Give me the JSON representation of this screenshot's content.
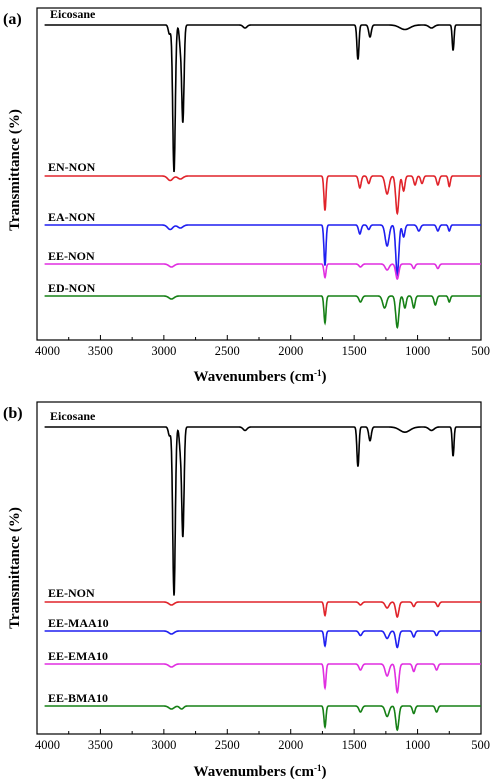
{
  "figure": {
    "y_axis_title": "Transmittance (%)",
    "x_axis_title_main": "Wavenumbers (cm",
    "x_axis_title_sup": "-1",
    "x_axis_title_end": ")"
  },
  "chart_data": [
    {
      "type": "line",
      "panel_label": "(a)",
      "xlabel": "Wavenumbers (cm-1)",
      "ylabel": "Transmittance (%)",
      "xlim": [
        4000,
        500
      ],
      "x_reversed": true,
      "xticks": [
        4000,
        3500,
        3000,
        2500,
        2000,
        1500,
        1000,
        500
      ],
      "y_tick_labels": false,
      "grid": false,
      "legend": "none (curve labels above each trace)",
      "series": [
        {
          "name": "Eicosane",
          "color": "#000000",
          "baseline": 0.0,
          "peaks": [
            {
              "x": 2956,
              "depth": 0.06,
              "width": 9
            },
            {
              "x": 2920,
              "depth": 0.98,
              "width": 10
            },
            {
              "x": 2870,
              "depth": 0.13,
              "width": 9
            },
            {
              "x": 2850,
              "depth": 0.64,
              "width": 9
            },
            {
              "x": 2360,
              "depth": 0.02,
              "width": 15
            },
            {
              "x": 1470,
              "depth": 0.23,
              "width": 8
            },
            {
              "x": 1375,
              "depth": 0.08,
              "width": 10
            },
            {
              "x": 1100,
              "depth": 0.03,
              "width": 40
            },
            {
              "x": 890,
              "depth": 0.02,
              "width": 20
            },
            {
              "x": 720,
              "depth": 0.17,
              "width": 7
            }
          ]
        },
        {
          "name": "EN-NON",
          "color": "#e0232a",
          "baseline": 0.0,
          "peaks": [
            {
              "x": 2950,
              "depth": 0.03,
              "width": 20
            },
            {
              "x": 2870,
              "depth": 0.02,
              "width": 20
            },
            {
              "x": 1730,
              "depth": 0.23,
              "width": 8
            },
            {
              "x": 1455,
              "depth": 0.08,
              "width": 10
            },
            {
              "x": 1385,
              "depth": 0.05,
              "width": 10
            },
            {
              "x": 1240,
              "depth": 0.12,
              "width": 15
            },
            {
              "x": 1160,
              "depth": 0.25,
              "width": 12
            },
            {
              "x": 1110,
              "depth": 0.1,
              "width": 10
            },
            {
              "x": 1020,
              "depth": 0.06,
              "width": 10
            },
            {
              "x": 965,
              "depth": 0.05,
              "width": 10
            },
            {
              "x": 840,
              "depth": 0.06,
              "width": 10
            },
            {
              "x": 750,
              "depth": 0.07,
              "width": 8
            }
          ]
        },
        {
          "name": "EA-NON",
          "color": "#1f1ff0",
          "baseline": 0.0,
          "peaks": [
            {
              "x": 2950,
              "depth": 0.03,
              "width": 20
            },
            {
              "x": 2870,
              "depth": 0.02,
              "width": 20
            },
            {
              "x": 1730,
              "depth": 0.27,
              "width": 8
            },
            {
              "x": 1455,
              "depth": 0.06,
              "width": 10
            },
            {
              "x": 1385,
              "depth": 0.03,
              "width": 10
            },
            {
              "x": 1240,
              "depth": 0.14,
              "width": 15
            },
            {
              "x": 1160,
              "depth": 0.33,
              "width": 12
            },
            {
              "x": 1110,
              "depth": 0.08,
              "width": 10
            },
            {
              "x": 990,
              "depth": 0.04,
              "width": 12
            },
            {
              "x": 840,
              "depth": 0.04,
              "width": 10
            },
            {
              "x": 750,
              "depth": 0.04,
              "width": 8
            }
          ]
        },
        {
          "name": "EE-NON",
          "color": "#e02ee0",
          "baseline": 0.0,
          "peaks": [
            {
              "x": 2940,
              "depth": 0.02,
              "width": 20
            },
            {
              "x": 1730,
              "depth": 0.09,
              "width": 8
            },
            {
              "x": 1450,
              "depth": 0.02,
              "width": 12
            },
            {
              "x": 1240,
              "depth": 0.04,
              "width": 15
            },
            {
              "x": 1160,
              "depth": 0.1,
              "width": 12
            },
            {
              "x": 1030,
              "depth": 0.03,
              "width": 10
            },
            {
              "x": 840,
              "depth": 0.03,
              "width": 10
            }
          ]
        },
        {
          "name": "ED-NON",
          "color": "#168016",
          "baseline": 0.0,
          "peaks": [
            {
              "x": 2940,
              "depth": 0.02,
              "width": 20
            },
            {
              "x": 1730,
              "depth": 0.18,
              "width": 8
            },
            {
              "x": 1450,
              "depth": 0.04,
              "width": 12
            },
            {
              "x": 1260,
              "depth": 0.08,
              "width": 15
            },
            {
              "x": 1160,
              "depth": 0.21,
              "width": 12
            },
            {
              "x": 1100,
              "depth": 0.08,
              "width": 10
            },
            {
              "x": 1030,
              "depth": 0.08,
              "width": 10
            },
            {
              "x": 860,
              "depth": 0.06,
              "width": 10
            },
            {
              "x": 750,
              "depth": 0.04,
              "width": 8
            }
          ]
        }
      ]
    },
    {
      "type": "line",
      "panel_label": "(b)",
      "xlabel": "Wavenumbers (cm-1)",
      "ylabel": "Transmittance (%)",
      "xlim": [
        4000,
        500
      ],
      "x_reversed": true,
      "xticks": [
        4000,
        3500,
        3000,
        2500,
        2000,
        1500,
        1000,
        500
      ],
      "y_tick_labels": false,
      "grid": false,
      "legend": "none (curve labels above each trace)",
      "series": [
        {
          "name": "Eicosane",
          "color": "#000000",
          "baseline": 0.0,
          "peaks": [
            {
              "x": 2956,
              "depth": 0.05,
              "width": 9
            },
            {
              "x": 2920,
              "depth": 0.98,
              "width": 10
            },
            {
              "x": 2870,
              "depth": 0.12,
              "width": 9
            },
            {
              "x": 2850,
              "depth": 0.63,
              "width": 9
            },
            {
              "x": 2360,
              "depth": 0.02,
              "width": 15
            },
            {
              "x": 1470,
              "depth": 0.23,
              "width": 8
            },
            {
              "x": 1375,
              "depth": 0.08,
              "width": 10
            },
            {
              "x": 1100,
              "depth": 0.03,
              "width": 40
            },
            {
              "x": 890,
              "depth": 0.02,
              "width": 20
            },
            {
              "x": 720,
              "depth": 0.17,
              "width": 7
            }
          ]
        },
        {
          "name": "EE-NON",
          "color": "#e0232a",
          "baseline": 0.0,
          "peaks": [
            {
              "x": 2940,
              "depth": 0.02,
              "width": 20
            },
            {
              "x": 1730,
              "depth": 0.09,
              "width": 8
            },
            {
              "x": 1450,
              "depth": 0.02,
              "width": 12
            },
            {
              "x": 1240,
              "depth": 0.04,
              "width": 15
            },
            {
              "x": 1160,
              "depth": 0.1,
              "width": 12
            },
            {
              "x": 1030,
              "depth": 0.03,
              "width": 10
            },
            {
              "x": 840,
              "depth": 0.03,
              "width": 10
            }
          ]
        },
        {
          "name": "EE-MAA10",
          "color": "#1f1ff0",
          "baseline": 0.0,
          "peaks": [
            {
              "x": 2940,
              "depth": 0.02,
              "width": 20
            },
            {
              "x": 1730,
              "depth": 0.1,
              "width": 8
            },
            {
              "x": 1450,
              "depth": 0.03,
              "width": 12
            },
            {
              "x": 1240,
              "depth": 0.05,
              "width": 15
            },
            {
              "x": 1160,
              "depth": 0.11,
              "width": 12
            },
            {
              "x": 1030,
              "depth": 0.04,
              "width": 10
            },
            {
              "x": 850,
              "depth": 0.03,
              "width": 10
            }
          ]
        },
        {
          "name": "EE-EMA10",
          "color": "#e02ee0",
          "baseline": 0.0,
          "peaks": [
            {
              "x": 2940,
              "depth": 0.02,
              "width": 20
            },
            {
              "x": 1730,
              "depth": 0.16,
              "width": 8
            },
            {
              "x": 1450,
              "depth": 0.04,
              "width": 12
            },
            {
              "x": 1240,
              "depth": 0.08,
              "width": 15
            },
            {
              "x": 1160,
              "depth": 0.19,
              "width": 12
            },
            {
              "x": 1030,
              "depth": 0.05,
              "width": 10
            },
            {
              "x": 850,
              "depth": 0.04,
              "width": 10
            }
          ]
        },
        {
          "name": "EE-BMA10",
          "color": "#168016",
          "baseline": 0.0,
          "peaks": [
            {
              "x": 2940,
              "depth": 0.02,
              "width": 20
            },
            {
              "x": 2860,
              "depth": 0.02,
              "width": 15
            },
            {
              "x": 1730,
              "depth": 0.14,
              "width": 8
            },
            {
              "x": 1450,
              "depth": 0.04,
              "width": 12
            },
            {
              "x": 1240,
              "depth": 0.07,
              "width": 15
            },
            {
              "x": 1160,
              "depth": 0.16,
              "width": 12
            },
            {
              "x": 1030,
              "depth": 0.05,
              "width": 10
            },
            {
              "x": 850,
              "depth": 0.04,
              "width": 10
            }
          ]
        }
      ]
    }
  ]
}
